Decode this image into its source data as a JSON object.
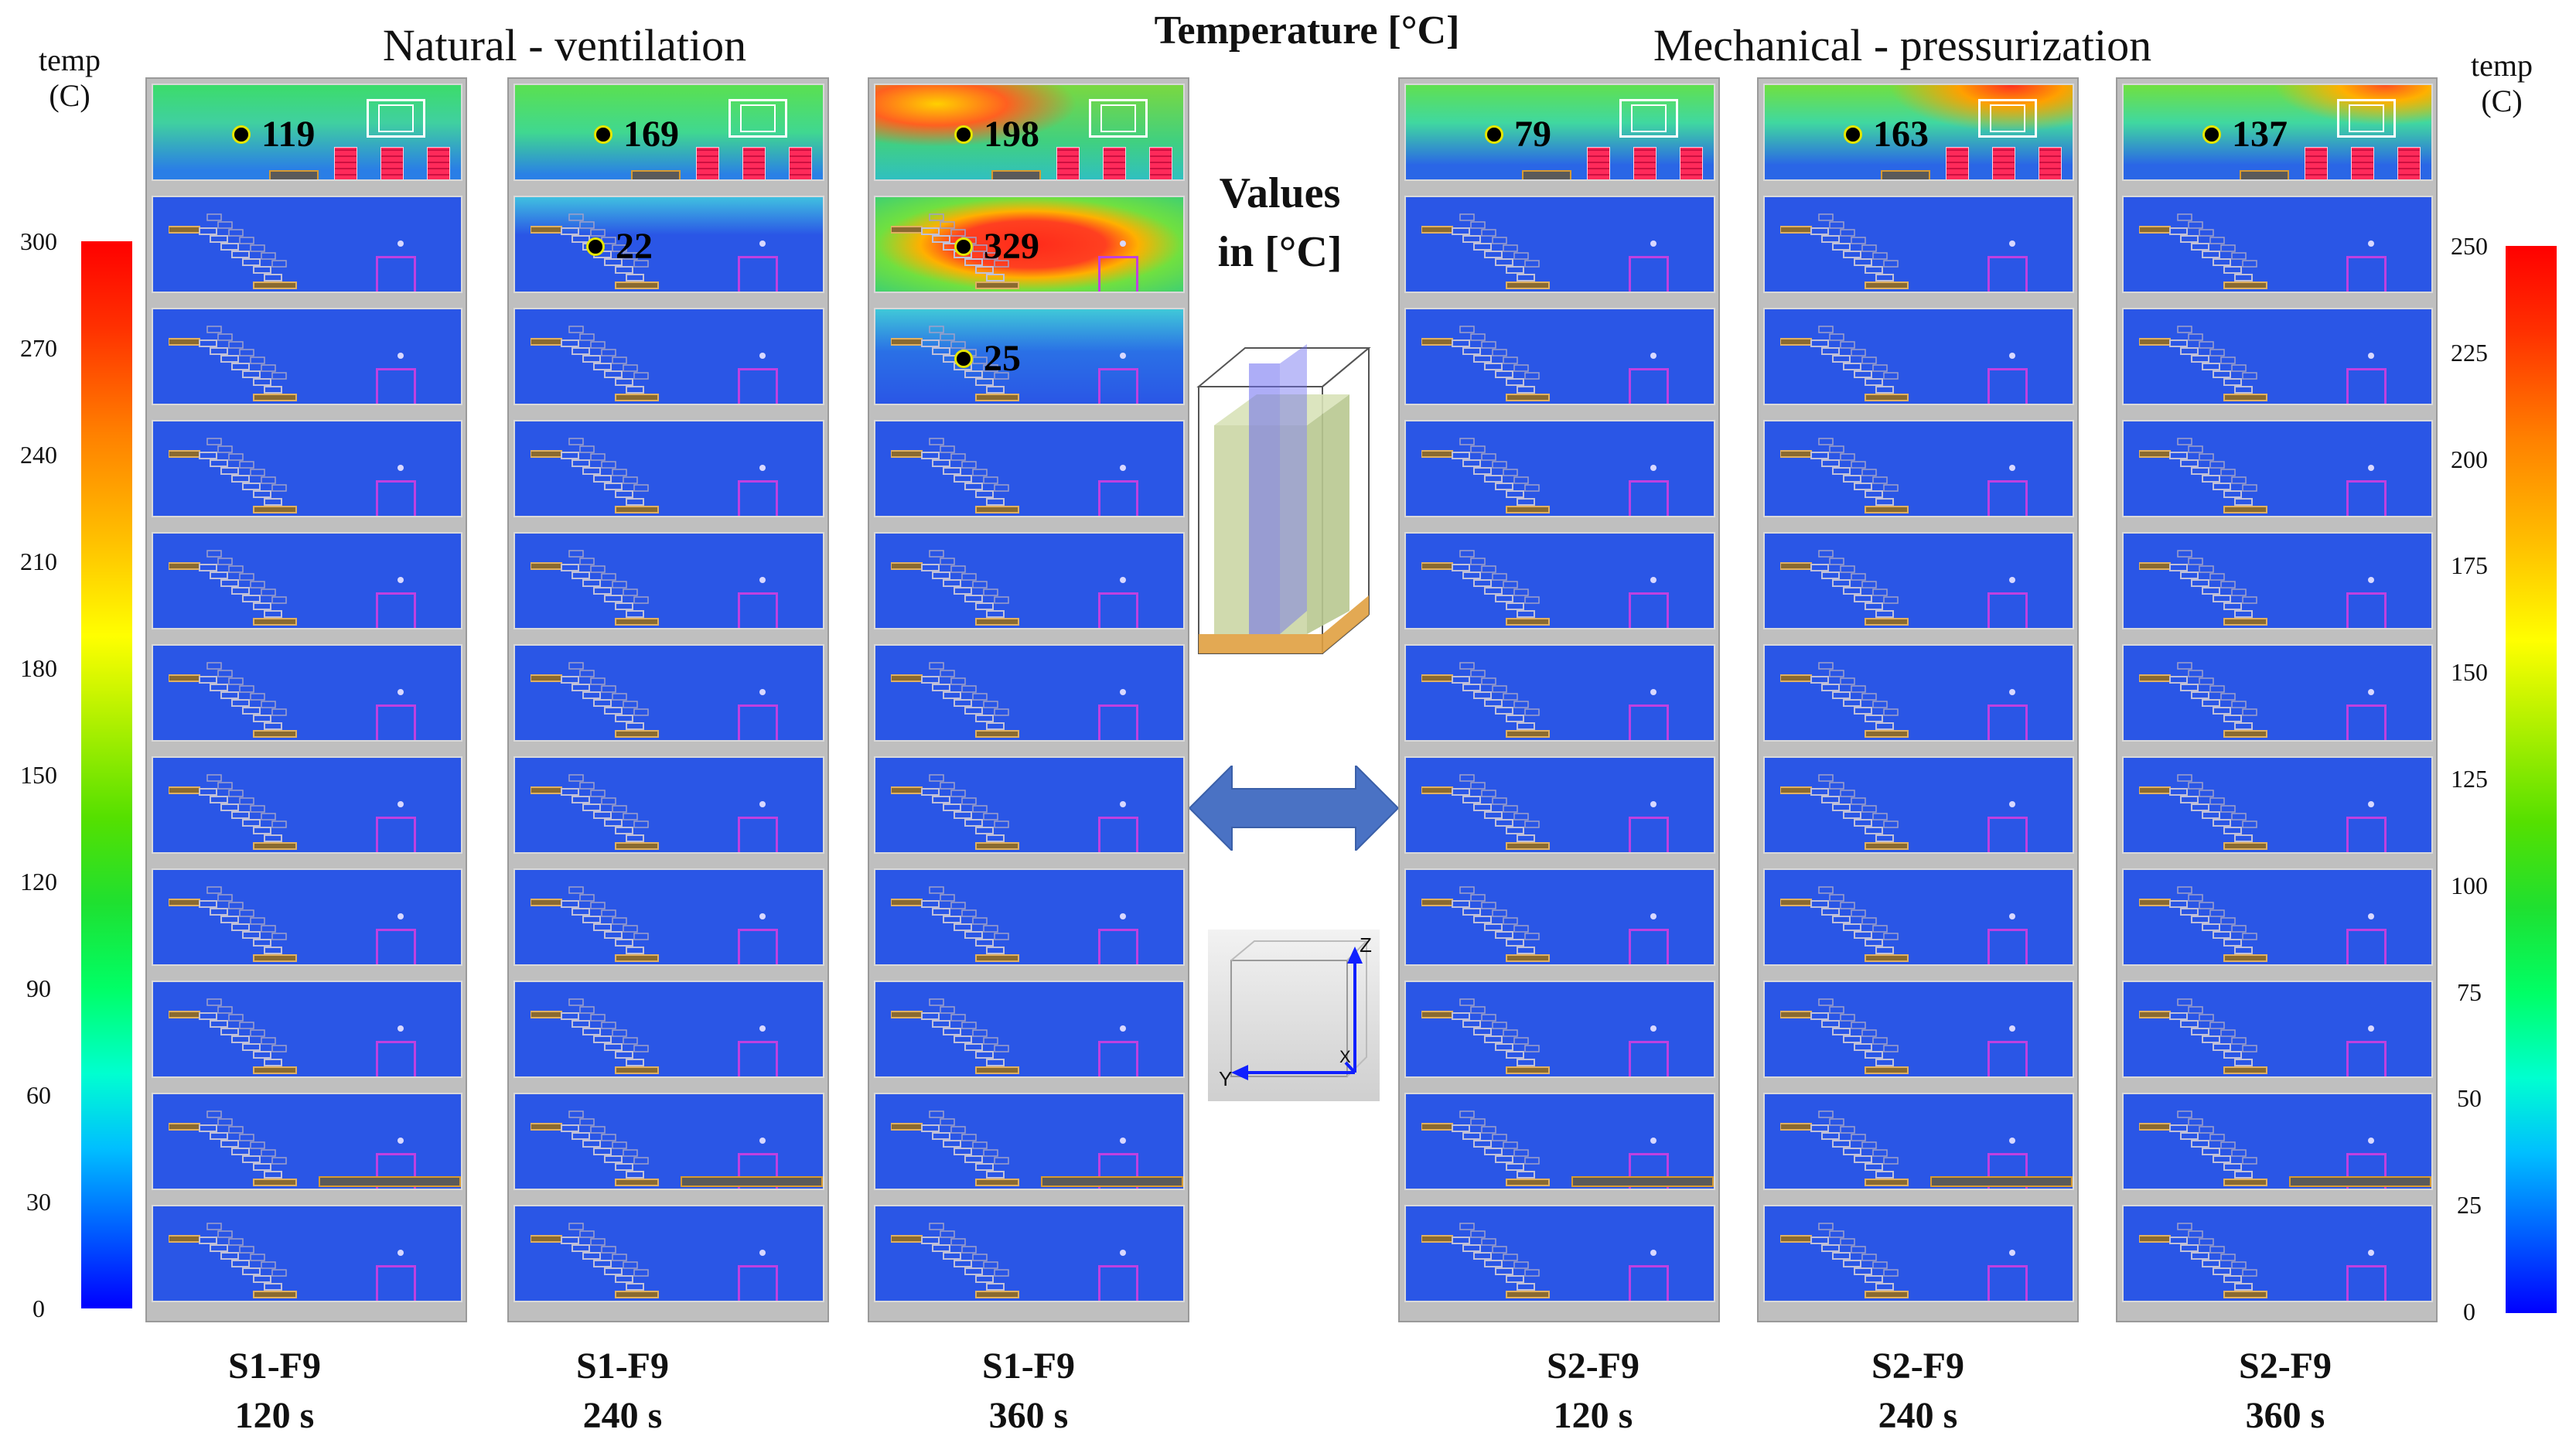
{
  "title": "Temperature [°C]",
  "groups": {
    "left": "Natural - ventilation",
    "right": "Mechanical - pressurization"
  },
  "colorbar_left": {
    "title_line1": "temp",
    "title_line2": "(C)",
    "ticks": [
      "300",
      "270",
      "240",
      "210",
      "180",
      "150",
      "120",
      "90",
      "60",
      "30",
      "0"
    ]
  },
  "colorbar_right": {
    "title_line1": "temp",
    "title_line2": "(C)",
    "ticks": [
      "250",
      "225",
      "200",
      "175",
      "150",
      "125",
      "100",
      "75",
      "50",
      "25",
      "0"
    ]
  },
  "note": {
    "line1": "Values",
    "line2": "in [°C]"
  },
  "axes_labels": {
    "z": "Z",
    "y": "Y",
    "x": "X"
  },
  "panels": [
    {
      "id": "p1",
      "case": "S1-F9",
      "time": "120 s",
      "probes": [
        "119"
      ]
    },
    {
      "id": "p2",
      "case": "S1-F9",
      "time": "240 s",
      "probes": [
        "169",
        "22"
      ]
    },
    {
      "id": "p3",
      "case": "S1-F9",
      "time": "360 s",
      "probes": [
        "198",
        "329",
        "25"
      ]
    },
    {
      "id": "p4",
      "case": "S2-F9",
      "time": "120 s",
      "probes": [
        "79"
      ]
    },
    {
      "id": "p5",
      "case": "S2-F9",
      "time": "240 s",
      "probes": [
        "163"
      ]
    },
    {
      "id": "p6",
      "case": "S2-F9",
      "time": "360 s",
      "probes": [
        "137"
      ]
    }
  ],
  "colors": {
    "cold": "#2a56e6",
    "warm": "#2ee07a",
    "hot": "#ff2a1a",
    "arrow": "#4a72c4"
  }
}
